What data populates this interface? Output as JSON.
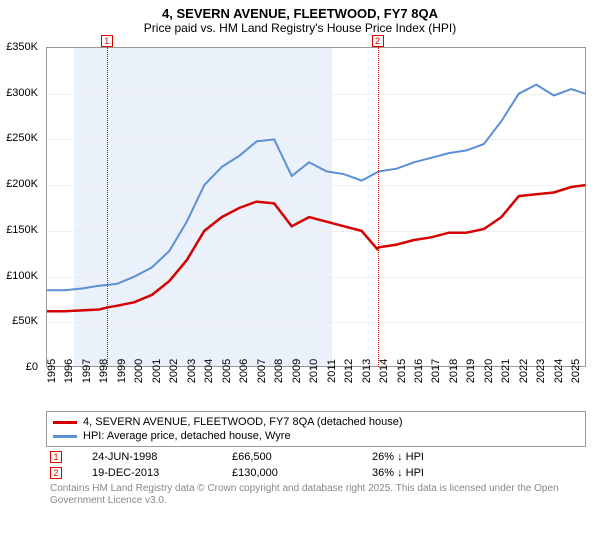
{
  "title": "4, SEVERN AVENUE, FLEETWOOD, FY7 8QA",
  "subtitle": "Price paid vs. HM Land Registry's House Price Index (HPI)",
  "chart": {
    "type": "line",
    "background_color": "#ffffff",
    "shaded_band_color": "#eaf1fa",
    "grid_color": "#eeeeee",
    "border_color": "#999999",
    "xlim": [
      1995,
      2025.9
    ],
    "ylim": [
      0,
      350000
    ],
    "yticks": [
      0,
      50000,
      100000,
      150000,
      200000,
      250000,
      300000,
      350000
    ],
    "ytick_labels": [
      "£0",
      "£50K",
      "£100K",
      "£150K",
      "£200K",
      "£250K",
      "£300K",
      "£350K"
    ],
    "xticks": [
      1995,
      1996,
      1997,
      1998,
      1999,
      2000,
      2001,
      2002,
      2003,
      2004,
      2005,
      2006,
      2007,
      2008,
      2009,
      2010,
      2011,
      2012,
      2013,
      2014,
      2015,
      2016,
      2017,
      2018,
      2019,
      2020,
      2021,
      2022,
      2023,
      2024,
      2025
    ],
    "label_fontsize": 11,
    "title_fontsize": 13,
    "series": [
      {
        "name": "4, SEVERN AVENUE, FLEETWOOD, FY7 8QA (detached house)",
        "color": "#d60000",
        "line_width": 2.5,
        "x": [
          1995,
          1996,
          1997,
          1998,
          1998.5,
          1999,
          2000,
          2001,
          2002,
          2003,
          2004,
          2005,
          2006,
          2007,
          2008,
          2009,
          2010,
          2011,
          2012,
          2013,
          2013.9,
          2014,
          2015,
          2016,
          2017,
          2018,
          2019,
          2020,
          2021,
          2022,
          2023,
          2024,
          2025,
          2025.8
        ],
        "y": [
          62000,
          62000,
          63000,
          64000,
          66500,
          68000,
          72000,
          80000,
          95000,
          118000,
          150000,
          165000,
          175000,
          182000,
          180000,
          155000,
          165000,
          160000,
          155000,
          150000,
          130000,
          132000,
          135000,
          140000,
          143000,
          148000,
          148000,
          152000,
          165000,
          188000,
          190000,
          192000,
          198000,
          200000
        ]
      },
      {
        "name": "HPI: Average price, detached house, Wyre",
        "color": "#5b8fd6",
        "line_width": 2,
        "x": [
          1995,
          1996,
          1997,
          1998,
          1999,
          2000,
          2001,
          2002,
          2003,
          2004,
          2005,
          2006,
          2007,
          2008,
          2009,
          2010,
          2011,
          2012,
          2013,
          2014,
          2015,
          2016,
          2017,
          2018,
          2019,
          2020,
          2021,
          2022,
          2023,
          2024,
          2025,
          2025.8
        ],
        "y": [
          85000,
          85000,
          87000,
          90000,
          92000,
          100000,
          110000,
          128000,
          160000,
          200000,
          220000,
          232000,
          248000,
          250000,
          210000,
          225000,
          215000,
          212000,
          205000,
          215000,
          218000,
          225000,
          230000,
          235000,
          238000,
          245000,
          270000,
          300000,
          310000,
          298000,
          305000,
          300000
        ]
      }
    ],
    "markers": [
      {
        "id": "1",
        "x": 1998.48
      },
      {
        "id": "2",
        "x": 2013.97
      }
    ]
  },
  "legend_items": [
    {
      "color": "#d60000",
      "label": "4, SEVERN AVENUE, FLEETWOOD, FY7 8QA (detached house)"
    },
    {
      "color": "#5b8fd6",
      "label": "HPI: Average price, detached house, Wyre"
    }
  ],
  "sales": [
    {
      "marker": "1",
      "date": "24-JUN-1998",
      "price": "£66,500",
      "diff": "26% ↓ HPI"
    },
    {
      "marker": "2",
      "date": "19-DEC-2013",
      "price": "£130,000",
      "diff": "36% ↓ HPI"
    }
  ],
  "attribution": "Contains HM Land Registry data © Crown copyright and database right 2025.\nThis data is licensed under the Open Government Licence v3.0."
}
